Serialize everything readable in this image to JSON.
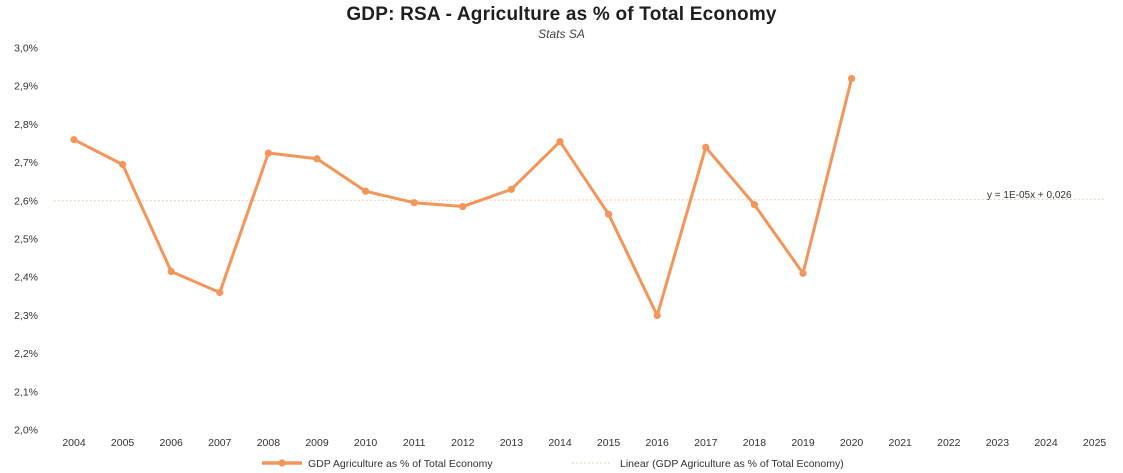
{
  "chart_data": {
    "type": "line",
    "title": "GDP: RSA - Agriculture as % of Total Economy",
    "subtitle": "Stats SA",
    "xlabel": "",
    "ylabel": "",
    "categories": [
      "2004",
      "2005",
      "2006",
      "2007",
      "2008",
      "2009",
      "2010",
      "2011",
      "2012",
      "2013",
      "2014",
      "2015",
      "2016",
      "2017",
      "2018",
      "2019",
      "2020",
      "2021",
      "2022",
      "2023",
      "2024",
      "2025"
    ],
    "ylim": [
      2.0,
      3.0
    ],
    "y_ticks": [
      "2,0%",
      "2,1%",
      "2,2%",
      "2,3%",
      "2,4%",
      "2,5%",
      "2,6%",
      "2,7%",
      "2,8%",
      "2,9%",
      "3,0%"
    ],
    "grid": false,
    "legend_position": "bottom",
    "series": [
      {
        "name": "GDP Agriculture as % of Total Economy",
        "color": "#F4955A",
        "values": [
          2.76,
          2.695,
          2.415,
          2.36,
          2.725,
          2.71,
          2.625,
          2.595,
          2.585,
          2.63,
          2.755,
          2.565,
          2.3,
          2.74,
          2.59,
          2.41,
          2.92,
          null,
          null,
          null,
          null,
          null
        ]
      },
      {
        "name": "Linear (GDP Agriculture as % of Total Economy)",
        "type": "trendline",
        "color": "#F6C9A4",
        "start_value": 2.6,
        "end_value": 2.604
      }
    ],
    "annotations": [
      {
        "text": "y = 1E-05x + 0,026"
      }
    ]
  }
}
